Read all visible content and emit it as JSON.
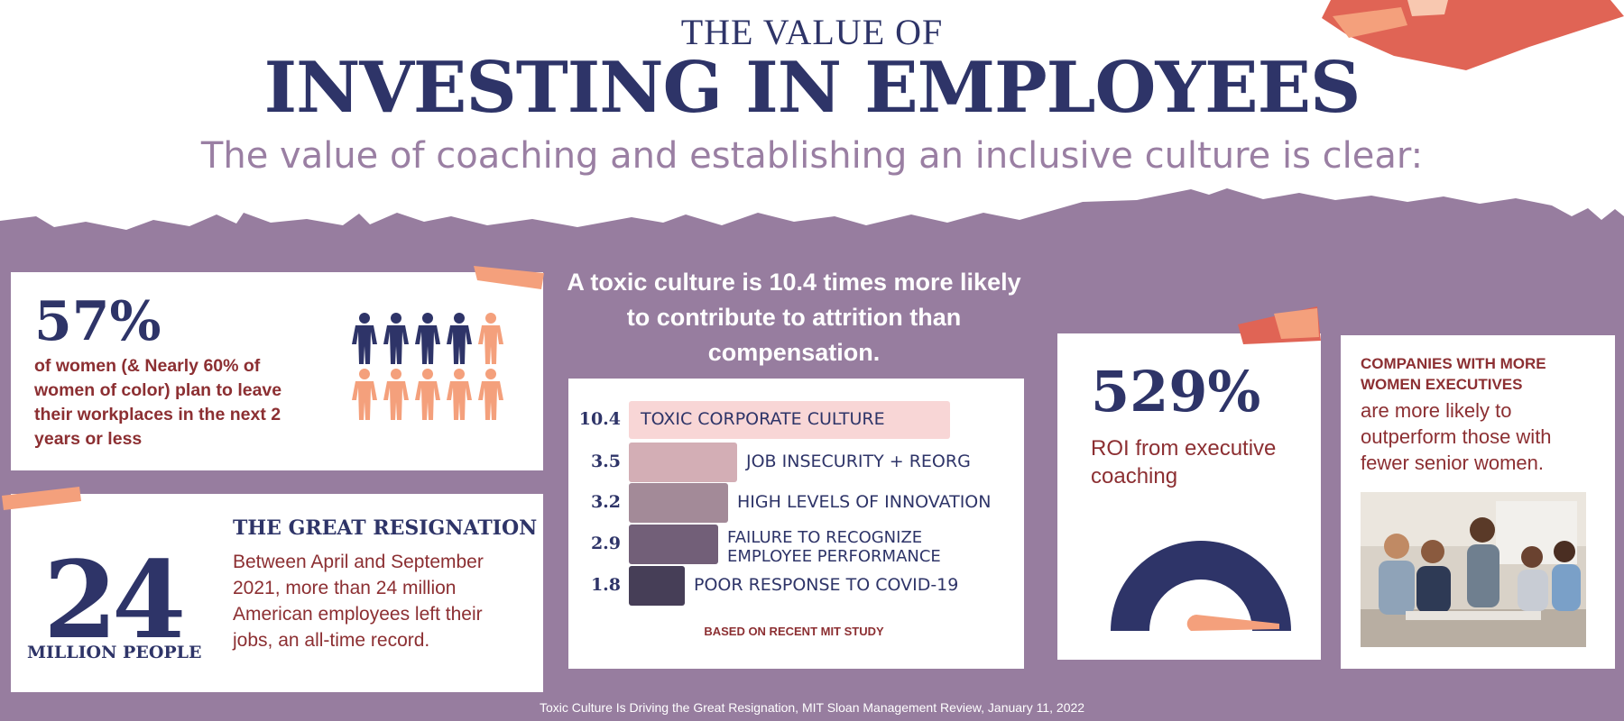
{
  "header": {
    "kicker": "THE VALUE OF",
    "title": "INVESTING IN EMPLOYEES",
    "subtitle": "The value of coaching and establishing an inclusive culture is clear:"
  },
  "women_leaving": {
    "stat": "57%",
    "text": "of women (& Nearly 60% of women of color) plan to leave their workplaces in the next 2 years or less",
    "people_total": 10,
    "people_highlighted": 6
  },
  "great_resignation": {
    "number": "24",
    "unit": "MILLION PEOPLE",
    "title": "THE GREAT RESIGNATION",
    "text": "Between April and September 2021, more than 24 million American employees left their jobs, an all-time record."
  },
  "toxic_culture": {
    "headline": "A toxic culture is 10.4 times more likely to contribute to attrition than compensation.",
    "note": "BASED ON RECENT MIT STUDY"
  },
  "chart_data": {
    "type": "bar",
    "orientation": "horizontal",
    "categories": [
      "TOXIC CORPORATE CULTURE",
      "JOB INSECURITY + REORG",
      "HIGH LEVELS OF INNOVATION",
      "FAILURE TO RECOGNIZE EMPLOYEE PERFORMANCE",
      "POOR RESPONSE TO COVID-19"
    ],
    "values": [
      10.4,
      3.5,
      3.2,
      2.9,
      1.8
    ],
    "value_labels": [
      "10.4",
      "3.5",
      "3.2",
      "2.9",
      "1.8"
    ],
    "colors": [
      "#f8d6d6",
      "#d3aeb5",
      "#a38a98",
      "#725f78",
      "#463e57"
    ]
  },
  "coaching": {
    "stat": "529%",
    "text": "ROI from executive coaching"
  },
  "women_executives": {
    "bold_text": "COMPANIES WITH MORE WOMEN EXECUTIVES",
    "text": "are more likely to outperform those with fewer senior women."
  },
  "footer": {
    "source": "Toxic Culture Is Driving the Great Resignation, MIT Sloan Management Review, January 11, 2022"
  },
  "colors": {
    "navy": "#2e3468",
    "purple": "#977d9f",
    "maroon": "#8c2f32",
    "coral": "#f4a07c",
    "red_accent": "#e06455"
  }
}
